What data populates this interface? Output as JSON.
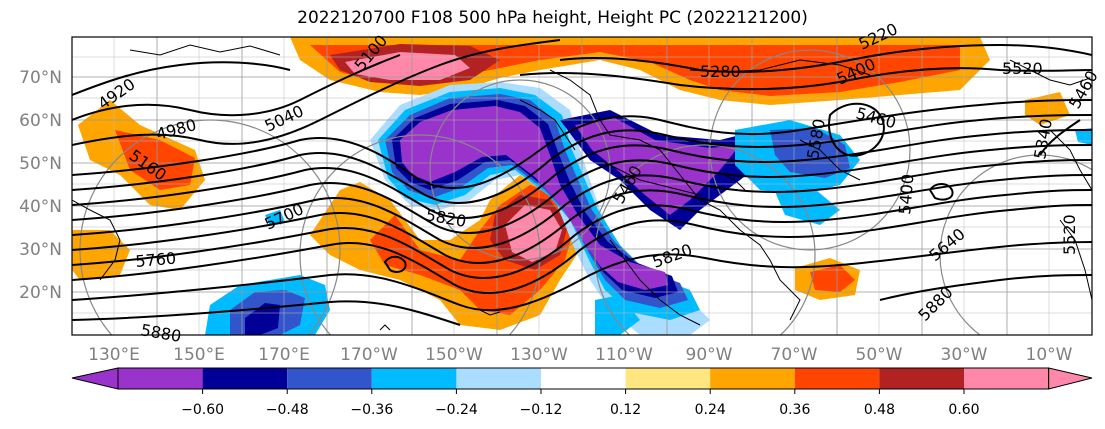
{
  "title": "2022120700 F108 500 hPa height, Height PC (2022121200)",
  "map": {
    "lat_labels": [
      "70°N",
      "60°N",
      "50°N",
      "40°N",
      "30°N",
      "20°N"
    ],
    "lon_labels": [
      "130°E",
      "150°E",
      "170°E",
      "170°W",
      "150°W",
      "130°W",
      "110°W",
      "90°W",
      "70°W",
      "50°W",
      "30°W",
      "10°W"
    ],
    "contour_labels": [
      {
        "text": "4920"
      },
      {
        "text": "4980"
      },
      {
        "text": "5160"
      },
      {
        "text": "5040"
      },
      {
        "text": "5100"
      },
      {
        "text": "5760"
      },
      {
        "text": "5700"
      },
      {
        "text": "5880"
      },
      {
        "text": "5820"
      },
      {
        "text": "5820"
      },
      {
        "text": "5460"
      },
      {
        "text": "5280"
      },
      {
        "text": "5520"
      },
      {
        "text": "5400"
      },
      {
        "text": "5460"
      },
      {
        "text": "5400"
      },
      {
        "text": "5640"
      },
      {
        "text": "5880"
      },
      {
        "text": "5520"
      },
      {
        "text": "5340"
      },
      {
        "text": "5460"
      },
      {
        "text": "5580"
      },
      {
        "text": "5220"
      }
    ]
  },
  "colorbar": {
    "ticks": [
      "−0.60",
      "−0.48",
      "−0.36",
      "−0.24",
      "−0.12",
      "0.12",
      "0.24",
      "0.36",
      "0.48",
      "0.60"
    ],
    "colors": [
      "#9933cc",
      "#000099",
      "#3355cc",
      "#00bbff",
      "#aaddff",
      "#ffffff",
      "#ffe680",
      "#ffa500",
      "#ff4500",
      "#b22222",
      "#ff88aa"
    ]
  }
}
